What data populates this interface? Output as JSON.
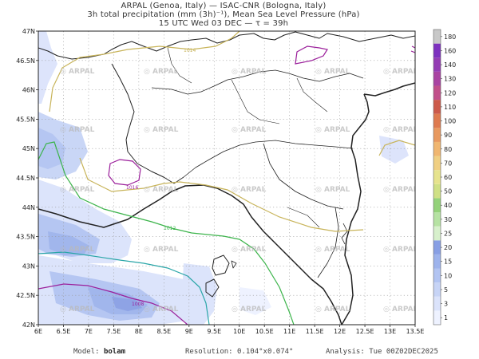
{
  "header": {
    "line1": "ARPAL (Genoa, Italy)  —  ISAC-CNR (Bologna, Italy)",
    "line2": "3h total precipitation (mm (3h)⁻¹), Mean Sea Level Pressure (hPa)",
    "line3": "15 UTC Wed 03 DEC  —  τ = 39h"
  },
  "axes": {
    "lat_labels": [
      "47N",
      "46.5N",
      "46N",
      "45.5N",
      "45N",
      "44.5N",
      "44N",
      "43.5N",
      "43N",
      "42.5N",
      "42N"
    ],
    "lat_values": [
      47,
      46.5,
      46,
      45.5,
      45,
      44.5,
      44,
      43.5,
      43,
      42.5,
      42
    ],
    "lon_labels": [
      "6E",
      "6.5E",
      "7E",
      "7.5E",
      "8E",
      "8.5E",
      "9E",
      "9.5E",
      "10E",
      "10.5E",
      "11E",
      "11.5E",
      "12E",
      "12.5E",
      "13E",
      "13.5E"
    ],
    "lon_values": [
      6,
      6.5,
      7,
      7.5,
      8,
      8.5,
      9,
      9.5,
      10,
      10.5,
      11,
      11.5,
      12,
      12.5,
      13,
      13.5
    ],
    "lon_range": [
      6,
      13.5
    ],
    "lat_range": [
      42,
      47
    ]
  },
  "colorbar": {
    "labels": [
      "1",
      "3",
      "5",
      "10",
      "15",
      "20",
      "25",
      "30",
      "40",
      "50",
      "60",
      "70",
      "80",
      "90",
      "100",
      "110",
      "120",
      "130",
      "140",
      "160",
      "180"
    ],
    "colors": [
      "#eef2ff",
      "#dbe3fb",
      "#c7d4f6",
      "#b2c4f2",
      "#9db3ec",
      "#889fe4",
      "#d7f0cc",
      "#b6e2a3",
      "#94d27a",
      "#cfe085",
      "#e6e38d",
      "#f0cf82",
      "#f0b670",
      "#e8995f",
      "#de7a4f",
      "#cc5a4a",
      "#c14f8a",
      "#a943a2",
      "#943cb4",
      "#7d31bf",
      "#c8c8c8"
    ]
  },
  "isobars": {
    "labels": [
      "1014",
      "1016",
      "1012",
      "1008"
    ],
    "colors": {
      "gold": "#c8b45a",
      "green": "#3cb44b",
      "teal": "#2aa6a8",
      "purple": "#9b1f9b"
    }
  },
  "watermark": "ARPAL",
  "footer": {
    "model_label": "Model:",
    "model_value": "bolam",
    "resolution_label": "Resolution:",
    "resolution_value": "0.104°x0.074°",
    "analysis_label": "Analysis:",
    "analysis_value": "Tue 00Z02DEC2025"
  }
}
